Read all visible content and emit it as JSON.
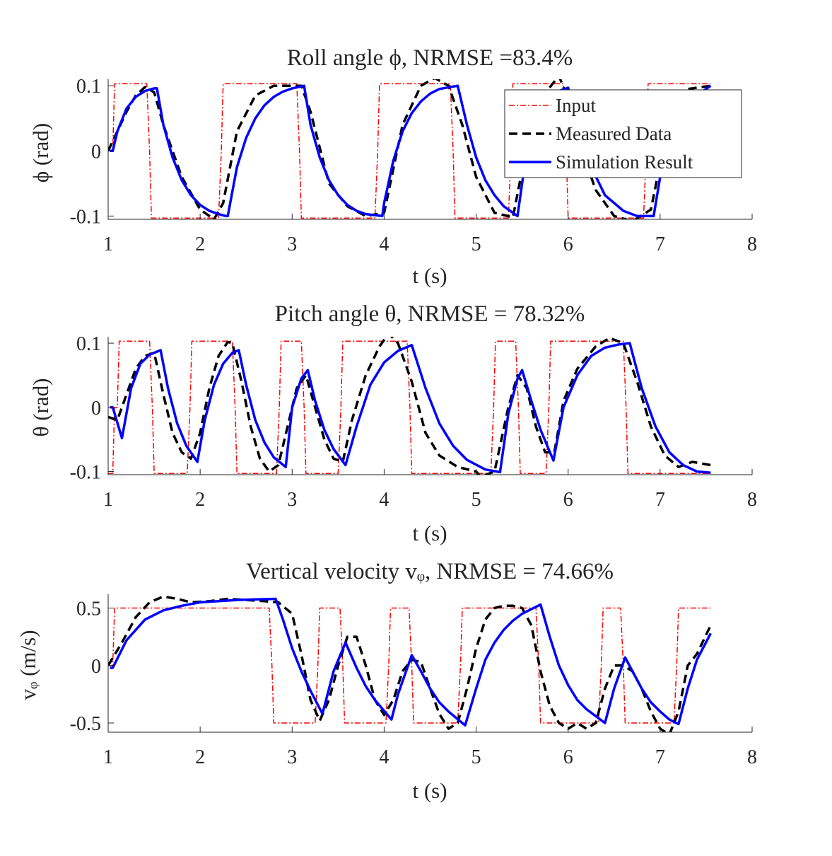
{
  "chart_data": [
    {
      "type": "line",
      "title": "Roll angle ϕ, NRMSE =83.4%",
      "xlabel": "t (s)",
      "ylabel": "ϕ (rad)",
      "xlim": [
        1,
        8
      ],
      "ylim": [
        -0.105,
        0.11
      ],
      "xticks": [
        1,
        2,
        3,
        4,
        5,
        6,
        7,
        8
      ],
      "yticks": [
        -0.1,
        0,
        0.1
      ],
      "ytick_labels": [
        "-0.1",
        "0",
        "0.1"
      ],
      "legend": {
        "position": "top-right",
        "entries": [
          "Input",
          "Measured Data",
          "Simulation Result"
        ]
      },
      "series": [
        {
          "name": "Input",
          "style": "dashdot",
          "color": "#ff0000",
          "x": [
            1.0,
            1.05,
            1.07,
            1.42,
            1.45,
            1.47,
            2.2,
            2.23,
            2.25,
            3.05,
            3.08,
            3.1,
            3.9,
            3.93,
            3.95,
            4.72,
            4.75,
            4.77,
            5.35,
            5.38,
            5.4,
            5.95,
            5.98,
            6.0,
            6.82,
            6.85,
            6.87,
            7.55
          ],
          "y": [
            0.0,
            0.0,
            0.103,
            0.103,
            0.0,
            -0.103,
            -0.103,
            0.0,
            0.103,
            0.103,
            0.0,
            -0.103,
            -0.103,
            0.0,
            0.103,
            0.103,
            0.0,
            -0.103,
            -0.103,
            0.0,
            0.103,
            0.103,
            0.0,
            -0.103,
            -0.103,
            0.0,
            0.103,
            0.103
          ]
        },
        {
          "name": "Measured Data",
          "style": "dashed",
          "color": "#000000",
          "x": [
            1.0,
            1.1,
            1.2,
            1.3,
            1.4,
            1.5,
            1.6,
            1.8,
            2.0,
            2.15,
            2.25,
            2.4,
            2.6,
            2.8,
            3.0,
            3.1,
            3.2,
            3.4,
            3.6,
            3.8,
            4.0,
            4.2,
            4.4,
            4.55,
            4.7,
            4.85,
            5.0,
            5.2,
            5.4,
            5.5,
            5.7,
            5.9,
            6.0,
            6.1,
            6.3,
            6.5,
            6.7,
            6.9,
            7.1,
            7.3,
            7.55
          ],
          "y": [
            0.0,
            0.03,
            0.06,
            0.085,
            0.098,
            0.09,
            0.04,
            -0.04,
            -0.09,
            -0.105,
            -0.08,
            0.03,
            0.085,
            0.1,
            0.1,
            0.1,
            0.06,
            -0.05,
            -0.085,
            -0.1,
            -0.095,
            0.04,
            0.1,
            0.112,
            0.1,
            0.04,
            -0.04,
            -0.095,
            -0.102,
            -0.03,
            0.08,
            0.115,
            0.08,
            0.02,
            -0.06,
            -0.1,
            -0.108,
            -0.09,
            0.05,
            0.095,
            0.1
          ]
        },
        {
          "name": "Simulation Result",
          "style": "solid",
          "color": "#0000ff",
          "x": [
            1.02,
            1.05,
            1.1,
            1.2,
            1.3,
            1.4,
            1.5,
            1.53,
            1.6,
            1.7,
            1.8,
            1.9,
            2.0,
            2.1,
            2.2,
            2.28,
            2.3,
            2.4,
            2.5,
            2.6,
            2.7,
            2.8,
            2.9,
            3.0,
            3.13,
            3.2,
            3.3,
            3.4,
            3.5,
            3.6,
            3.7,
            3.8,
            3.98,
            4.0,
            4.1,
            4.2,
            4.3,
            4.4,
            4.5,
            4.6,
            4.8,
            4.9,
            5.0,
            5.1,
            5.2,
            5.3,
            5.45,
            5.55,
            5.7,
            5.8,
            5.9,
            6.0,
            6.1,
            6.2,
            6.4,
            6.6,
            6.75,
            6.93,
            7.0,
            7.1,
            7.2,
            7.3,
            7.4,
            7.55
          ],
          "y": [
            0.0,
            0.0,
            0.03,
            0.065,
            0.083,
            0.092,
            0.096,
            0.096,
            0.04,
            -0.01,
            -0.045,
            -0.068,
            -0.083,
            -0.092,
            -0.097,
            -0.1,
            -0.1,
            -0.025,
            0.02,
            0.05,
            0.07,
            0.083,
            0.091,
            0.096,
            0.1,
            0.04,
            -0.01,
            -0.045,
            -0.068,
            -0.083,
            -0.092,
            -0.097,
            -0.1,
            -0.08,
            -0.015,
            0.03,
            0.058,
            0.076,
            0.088,
            0.095,
            0.1,
            0.04,
            -0.01,
            -0.045,
            -0.068,
            -0.085,
            -0.1,
            0.0,
            0.06,
            0.08,
            0.092,
            0.097,
            0.04,
            -0.01,
            -0.068,
            -0.092,
            -0.1,
            -0.1,
            -0.04,
            0.01,
            0.045,
            0.068,
            0.085,
            0.1
          ]
        }
      ]
    },
    {
      "type": "line",
      "title": "Pitch angle θ, NRMSE = 78.32%",
      "xlabel": "t (s)",
      "ylabel": "θ (rad)",
      "xlim": [
        1,
        8
      ],
      "ylim": [
        -0.105,
        0.11
      ],
      "xticks": [
        1,
        2,
        3,
        4,
        5,
        6,
        7,
        8
      ],
      "yticks": [
        -0.1,
        0,
        0.1
      ],
      "ytick_labels": [
        "-0.1",
        "0",
        "0.1"
      ],
      "series": [
        {
          "name": "Input",
          "style": "dashdot",
          "color": "#ff0000",
          "x": [
            1.0,
            1.05,
            1.07,
            1.1,
            1.12,
            1.14,
            1.45,
            1.48,
            1.5,
            1.86,
            1.89,
            1.91,
            2.35,
            2.38,
            2.4,
            2.83,
            2.86,
            2.88,
            3.1,
            3.13,
            3.15,
            3.5,
            3.53,
            3.55,
            4.25,
            4.28,
            4.3,
            5.16,
            5.19,
            5.21,
            5.43,
            5.46,
            5.48,
            5.76,
            5.79,
            5.81,
            6.6,
            6.63,
            6.65,
            7.55
          ],
          "y": [
            -0.103,
            -0.103,
            0.0,
            0.0,
            0.103,
            0.103,
            0.103,
            0.0,
            -0.103,
            -0.103,
            0.0,
            0.103,
            0.103,
            0.0,
            -0.103,
            -0.103,
            0.0,
            0.103,
            0.103,
            0.0,
            -0.103,
            -0.103,
            0.0,
            0.103,
            0.103,
            0.0,
            -0.103,
            -0.103,
            0.0,
            0.103,
            0.103,
            0.0,
            -0.103,
            -0.103,
            0.0,
            0.103,
            0.103,
            0.0,
            -0.103,
            -0.103
          ]
        },
        {
          "name": "Measured Data",
          "style": "dashed",
          "color": "#000000",
          "x": [
            1.0,
            1.1,
            1.2,
            1.3,
            1.4,
            1.5,
            1.6,
            1.7,
            1.8,
            1.9,
            2.0,
            2.1,
            2.2,
            2.3,
            2.35,
            2.45,
            2.55,
            2.65,
            2.75,
            2.85,
            2.95,
            3.05,
            3.15,
            3.25,
            3.35,
            3.45,
            3.55,
            3.65,
            3.8,
            3.95,
            4.05,
            4.15,
            4.3,
            4.45,
            4.6,
            4.8,
            5.0,
            5.05,
            5.2,
            5.35,
            5.45,
            5.55,
            5.65,
            5.75,
            5.85,
            5.95,
            6.1,
            6.3,
            6.45,
            6.6,
            6.75,
            6.9,
            7.05,
            7.2,
            7.35,
            7.55
          ],
          "y": [
            -0.015,
            -0.02,
            0.02,
            0.06,
            0.08,
            0.085,
            0.02,
            -0.04,
            -0.07,
            -0.08,
            -0.04,
            0.03,
            0.08,
            0.102,
            0.1,
            0.04,
            -0.03,
            -0.08,
            -0.1,
            -0.09,
            -0.03,
            0.03,
            0.05,
            0.0,
            -0.05,
            -0.08,
            -0.085,
            -0.02,
            0.05,
            0.095,
            0.115,
            0.1,
            0.04,
            -0.04,
            -0.075,
            -0.093,
            -0.1,
            -0.108,
            -0.1,
            0.0,
            0.05,
            0.03,
            -0.03,
            -0.07,
            -0.07,
            0.01,
            0.06,
            0.095,
            0.108,
            0.1,
            0.04,
            -0.03,
            -0.075,
            -0.093,
            -0.085,
            -0.09
          ]
        },
        {
          "name": "Simulation Result",
          "style": "solid",
          "color": "#0000ff",
          "x": [
            1.02,
            1.05,
            1.15,
            1.25,
            1.35,
            1.45,
            1.57,
            1.65,
            1.75,
            1.85,
            1.97,
            2.05,
            2.15,
            2.25,
            2.35,
            2.42,
            2.5,
            2.6,
            2.7,
            2.8,
            2.93,
            3.0,
            3.1,
            3.17,
            3.25,
            3.35,
            3.45,
            3.58,
            3.7,
            3.85,
            4.0,
            4.15,
            4.3,
            4.45,
            4.6,
            4.75,
            4.9,
            5.1,
            5.26,
            5.35,
            5.45,
            5.5,
            5.6,
            5.7,
            5.84,
            5.95,
            6.1,
            6.25,
            6.4,
            6.55,
            6.67,
            6.8,
            6.95,
            7.1,
            7.25,
            7.4,
            7.55
          ],
          "y": [
            0.0,
            0.0,
            -0.048,
            0.03,
            0.068,
            0.082,
            0.089,
            0.03,
            -0.025,
            -0.06,
            -0.085,
            -0.02,
            0.035,
            0.068,
            0.085,
            0.089,
            0.035,
            -0.02,
            -0.055,
            -0.078,
            -0.093,
            0.0,
            0.045,
            0.058,
            0.01,
            -0.035,
            -0.065,
            -0.09,
            -0.03,
            0.035,
            0.07,
            0.088,
            0.097,
            0.03,
            -0.025,
            -0.06,
            -0.082,
            -0.097,
            -0.101,
            -0.01,
            0.045,
            0.058,
            0.01,
            -0.035,
            -0.083,
            0.0,
            0.05,
            0.08,
            0.093,
            0.098,
            0.1,
            0.03,
            -0.03,
            -0.07,
            -0.09,
            -0.1,
            -0.102
          ]
        }
      ]
    },
    {
      "type": "line",
      "title": "Vertical velocity vᵩ, NRMSE = 74.66%",
      "xlabel": "t (s)",
      "ylabel": "vᵩ (m/s)",
      "xlim": [
        1,
        8
      ],
      "ylim": [
        -0.58,
        0.62
      ],
      "xticks": [
        1,
        2,
        3,
        4,
        5,
        6,
        7,
        8
      ],
      "yticks": [
        -0.5,
        0,
        0.5
      ],
      "ytick_labels": [
        "-0.5",
        "0",
        "0.5"
      ],
      "series": [
        {
          "name": "Input",
          "style": "dashdot",
          "color": "#ff0000",
          "x": [
            1.0,
            1.05,
            1.07,
            2.75,
            2.78,
            2.8,
            3.25,
            3.28,
            3.3,
            3.52,
            3.55,
            3.57,
            4.02,
            4.05,
            4.07,
            4.27,
            4.3,
            4.32,
            4.8,
            4.83,
            4.85,
            5.65,
            5.68,
            5.7,
            6.33,
            6.36,
            6.38,
            6.57,
            6.6,
            6.62,
            7.15,
            7.18,
            7.2,
            7.55
          ],
          "y": [
            0.0,
            0.0,
            0.5,
            0.5,
            0.0,
            -0.5,
            -0.5,
            0.0,
            0.5,
            0.5,
            0.0,
            -0.5,
            -0.5,
            0.0,
            0.5,
            0.5,
            0.0,
            -0.5,
            -0.5,
            0.0,
            0.5,
            0.5,
            0.0,
            -0.5,
            -0.5,
            0.0,
            0.5,
            0.5,
            0.0,
            -0.5,
            -0.5,
            0.0,
            0.5,
            0.5
          ]
        },
        {
          "name": "Measured Data",
          "style": "dashed",
          "color": "#000000",
          "x": [
            1.0,
            1.15,
            1.3,
            1.45,
            1.6,
            1.75,
            1.9,
            2.1,
            2.3,
            2.5,
            2.7,
            2.85,
            3.0,
            3.1,
            3.2,
            3.3,
            3.4,
            3.5,
            3.6,
            3.7,
            3.8,
            3.9,
            4.0,
            4.1,
            4.2,
            4.3,
            4.4,
            4.5,
            4.6,
            4.7,
            4.8,
            4.9,
            5.0,
            5.1,
            5.2,
            5.3,
            5.4,
            5.5,
            5.6,
            5.7,
            5.8,
            5.9,
            6.0,
            6.1,
            6.2,
            6.3,
            6.4,
            6.5,
            6.6,
            6.7,
            6.8,
            6.9,
            7.0,
            7.1,
            7.2,
            7.3,
            7.4,
            7.55
          ],
          "y": [
            0.0,
            0.2,
            0.42,
            0.55,
            0.6,
            0.58,
            0.55,
            0.56,
            0.58,
            0.57,
            0.56,
            0.55,
            0.45,
            0.1,
            -0.3,
            -0.48,
            -0.3,
            0.0,
            0.25,
            0.25,
            0.0,
            -0.3,
            -0.43,
            -0.3,
            -0.05,
            0.05,
            0.03,
            -0.2,
            -0.42,
            -0.55,
            -0.5,
            -0.2,
            0.15,
            0.4,
            0.5,
            0.52,
            0.52,
            0.5,
            0.35,
            -0.05,
            -0.35,
            -0.5,
            -0.55,
            -0.5,
            -0.55,
            -0.5,
            -0.2,
            0.0,
            0.0,
            -0.05,
            -0.2,
            -0.4,
            -0.55,
            -0.6,
            -0.4,
            0.0,
            0.1,
            0.35
          ]
        },
        {
          "name": "Simulation Result",
          "style": "solid",
          "color": "#0000ff",
          "x": [
            1.02,
            1.05,
            1.2,
            1.4,
            1.6,
            1.8,
            2.0,
            2.2,
            2.4,
            2.6,
            2.82,
            2.9,
            3.0,
            3.1,
            3.2,
            3.33,
            3.45,
            3.58,
            3.7,
            3.8,
            3.9,
            4.08,
            4.15,
            4.3,
            4.4,
            4.5,
            4.6,
            4.7,
            4.88,
            5.0,
            5.1,
            5.2,
            5.3,
            5.4,
            5.5,
            5.6,
            5.7,
            5.8,
            5.9,
            6.0,
            6.1,
            6.2,
            6.4,
            6.5,
            6.62,
            6.7,
            6.8,
            6.9,
            7.0,
            7.1,
            7.2,
            7.3,
            7.4,
            7.55
          ],
          "y": [
            -0.02,
            -0.02,
            0.22,
            0.4,
            0.48,
            0.52,
            0.55,
            0.56,
            0.57,
            0.575,
            0.58,
            0.4,
            0.15,
            -0.05,
            -0.22,
            -0.42,
            -0.05,
            0.2,
            -0.02,
            -0.18,
            -0.3,
            -0.47,
            -0.25,
            0.09,
            -0.05,
            -0.2,
            -0.32,
            -0.4,
            -0.52,
            -0.2,
            0.05,
            0.2,
            0.31,
            0.39,
            0.45,
            0.49,
            0.53,
            0.25,
            0.0,
            -0.17,
            -0.3,
            -0.38,
            -0.5,
            -0.2,
            0.07,
            -0.05,
            -0.2,
            -0.32,
            -0.4,
            -0.47,
            -0.51,
            -0.2,
            0.05,
            0.28
          ]
        }
      ]
    }
  ],
  "colors": {
    "input": "#ff0000",
    "measured": "#000000",
    "simulation": "#0000ff",
    "axis": "#262626"
  }
}
